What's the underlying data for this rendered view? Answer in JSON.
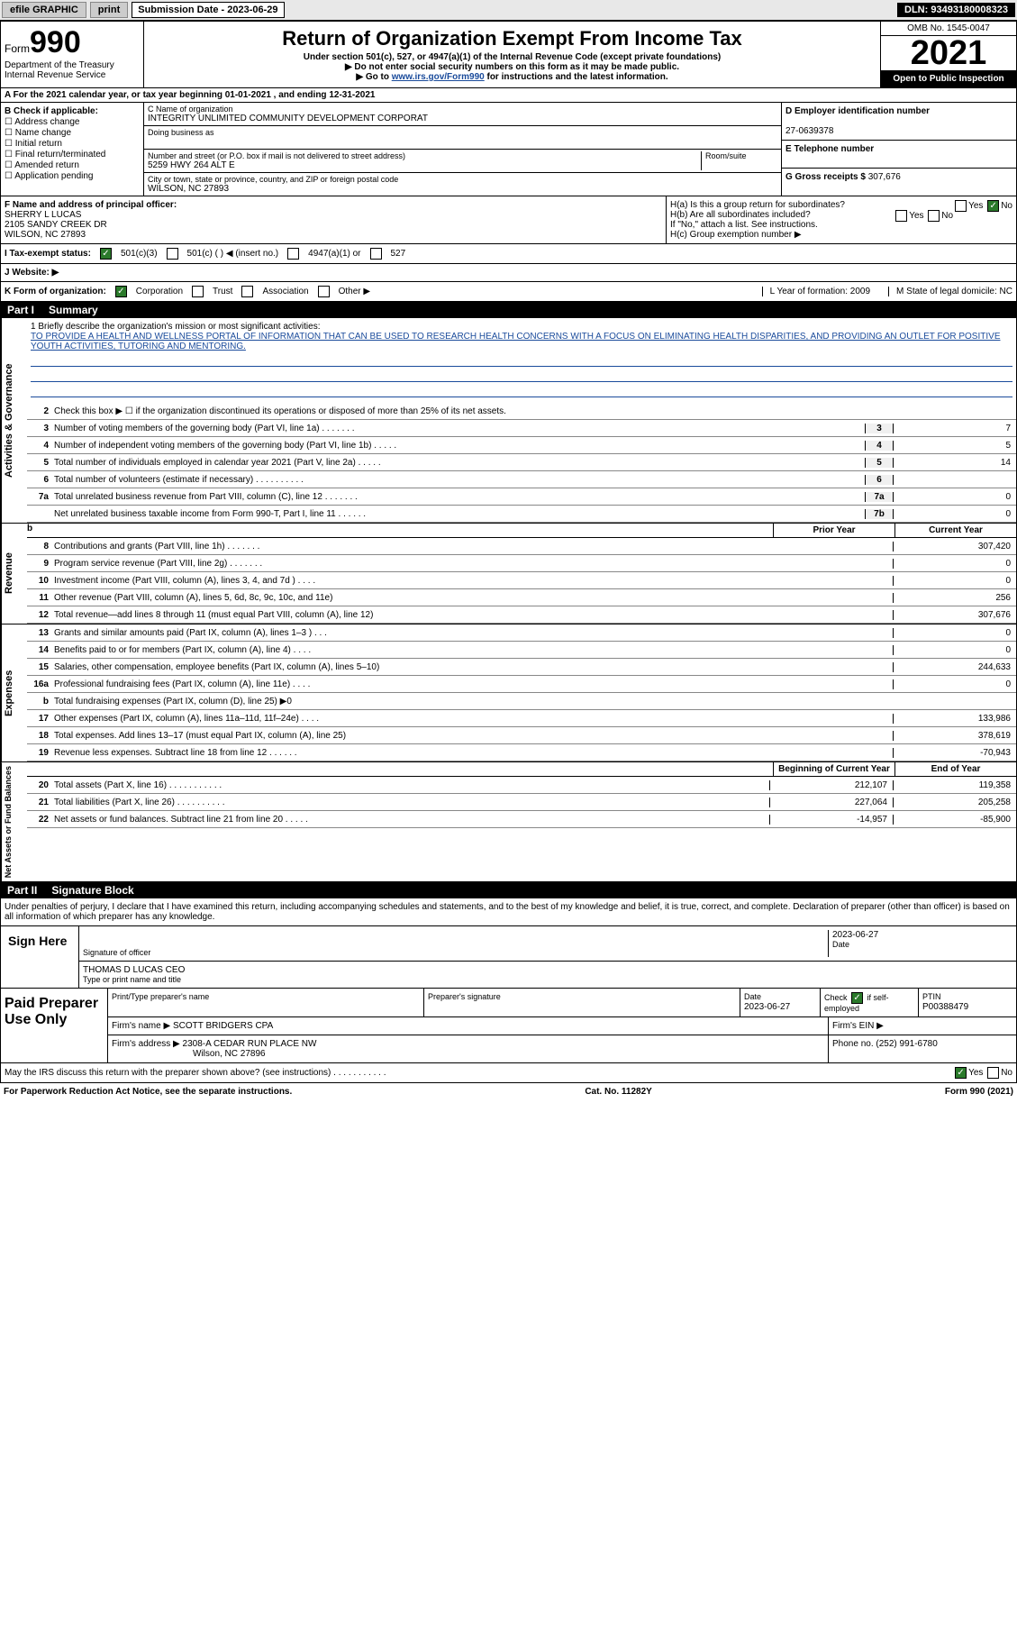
{
  "topbar": {
    "efile": "efile GRAPHIC",
    "print": "print",
    "sub_label": "Submission Date - 2023-06-29",
    "dln": "DLN: 93493180008323"
  },
  "header": {
    "form_word": "Form",
    "form_num": "990",
    "dept": "Department of the Treasury",
    "irs": "Internal Revenue Service",
    "title": "Return of Organization Exempt From Income Tax",
    "sub1": "Under section 501(c), 527, or 4947(a)(1) of the Internal Revenue Code (except private foundations)",
    "sub2": "▶ Do not enter social security numbers on this form as it may be made public.",
    "sub3_pre": "▶ Go to ",
    "sub3_link": "www.irs.gov/Form990",
    "sub3_post": " for instructions and the latest information.",
    "omb": "OMB No. 1545-0047",
    "year": "2021",
    "open": "Open to Public Inspection"
  },
  "section_a": "A For the 2021 calendar year, or tax year beginning 01-01-2021    , and ending 12-31-2021",
  "box_b": {
    "title": "B Check if applicable:",
    "items": [
      "Address change",
      "Name change",
      "Initial return",
      "Final return/terminated",
      "Amended return",
      "Application pending"
    ]
  },
  "box_c": {
    "name_label": "C Name of organization",
    "name": "INTEGRITY UNLIMITED COMMUNITY DEVELOPMENT CORPORAT",
    "dba_label": "Doing business as",
    "addr_label": "Number and street (or P.O. box if mail is not delivered to street address)",
    "room_label": "Room/suite",
    "addr": "5259 HWY 264 ALT E",
    "city_label": "City or town, state or province, country, and ZIP or foreign postal code",
    "city": "WILSON, NC  27893"
  },
  "box_d": {
    "label": "D Employer identification number",
    "ein": "27-0639378"
  },
  "box_e": {
    "label": "E Telephone number"
  },
  "box_g": {
    "label": "G Gross receipts $",
    "val": "307,676"
  },
  "box_f": {
    "label": "F  Name and address of principal officer:",
    "name": "SHERRY L LUCAS",
    "addr1": "2105 SANDY CREEK DR",
    "addr2": "WILSON, NC  27893"
  },
  "box_h": {
    "ha": "H(a)  Is this a group return for subordinates?",
    "hb": "H(b)  Are all subordinates included?",
    "hb_note": "If \"No,\" attach a list. See instructions.",
    "hc": "H(c)  Group exemption number ▶",
    "yes": "Yes",
    "no": "No"
  },
  "tax_status": {
    "label": "I  Tax-exempt status:",
    "opt1": "501(c)(3)",
    "opt2": "501(c) (   ) ◀ (insert no.)",
    "opt3": "4947(a)(1) or",
    "opt4": "527"
  },
  "website": {
    "label": "J  Website: ▶"
  },
  "korg": {
    "label": "K Form of organization:",
    "corp": "Corporation",
    "trust": "Trust",
    "assoc": "Association",
    "other": "Other ▶",
    "l": "L Year of formation: 2009",
    "m": "M State of legal domicile: NC"
  },
  "part1": {
    "num": "Part I",
    "title": "Summary"
  },
  "mission": {
    "label": "1  Briefly describe the organization's mission or most significant activities:",
    "text": "TO PROVIDE A HEALTH AND WELLNESS PORTAL OF INFORMATION THAT CAN BE USED TO RESEARCH HEALTH CONCERNS WITH A FOCUS ON ELIMINATING HEALTH DISPARITIES, AND PROVIDING AN OUTLET FOR POSITIVE YOUTH ACTIVITIES, TUTORING AND MENTORING."
  },
  "line2": "Check this box ▶ ☐  if the organization discontinued its operations or disposed of more than 25% of its net assets.",
  "lines_ag": [
    {
      "n": "3",
      "d": "Number of voting members of the governing body (Part VI, line 1a)   .    .    .    .    .    .    .",
      "box": "3",
      "v": "7"
    },
    {
      "n": "4",
      "d": "Number of independent voting members of the governing body (Part VI, line 1b)   .    .    .    .    .",
      "box": "4",
      "v": "5"
    },
    {
      "n": "5",
      "d": "Total number of individuals employed in calendar year 2021 (Part V, line 2a)   .    .    .    .    .",
      "box": "5",
      "v": "14"
    },
    {
      "n": "6",
      "d": "Total number of volunteers (estimate if necessary)    .    .    .    .    .    .    .    .    .    .",
      "box": "6",
      "v": ""
    },
    {
      "n": "7a",
      "d": "Total unrelated business revenue from Part VIII, column (C), line 12    .    .    .    .    .    .    .",
      "box": "7a",
      "v": "0"
    },
    {
      "n": "",
      "d": "Net unrelated business taxable income from Form 990-T, Part I, line 11    .    .    .    .    .    .",
      "box": "7b",
      "v": "0"
    }
  ],
  "col_headers": {
    "prior": "Prior Year",
    "current": "Current Year"
  },
  "revenue_lines": [
    {
      "n": "8",
      "d": "Contributions and grants (Part VIII, line 1h)    .    .    .    .    .    .    .",
      "p": "",
      "c": "307,420"
    },
    {
      "n": "9",
      "d": "Program service revenue (Part VIII, line 2g)    .    .    .    .    .    .    .",
      "p": "",
      "c": "0"
    },
    {
      "n": "10",
      "d": "Investment income (Part VIII, column (A), lines 3, 4, and 7d )    .    .    .    .",
      "p": "",
      "c": "0"
    },
    {
      "n": "11",
      "d": "Other revenue (Part VIII, column (A), lines 5, 6d, 8c, 9c, 10c, and 11e)",
      "p": "",
      "c": "256"
    },
    {
      "n": "12",
      "d": "Total revenue—add lines 8 through 11 (must equal Part VIII, column (A), line 12)",
      "p": "",
      "c": "307,676"
    }
  ],
  "expense_lines": [
    {
      "n": "13",
      "d": "Grants and similar amounts paid (Part IX, column (A), lines 1–3 )    .    .    .",
      "p": "",
      "c": "0"
    },
    {
      "n": "14",
      "d": "Benefits paid to or for members (Part IX, column (A), line 4)    .    .    .    .",
      "p": "",
      "c": "0"
    },
    {
      "n": "15",
      "d": "Salaries, other compensation, employee benefits (Part IX, column (A), lines 5–10)",
      "p": "",
      "c": "244,633"
    },
    {
      "n": "16a",
      "d": "Professional fundraising fees (Part IX, column (A), line 11e)    .    .    .    .",
      "p": "",
      "c": "0"
    },
    {
      "n": "b",
      "d": "Total fundraising expenses (Part IX, column (D), line 25) ▶0",
      "p": "grey",
      "c": "grey"
    },
    {
      "n": "17",
      "d": "Other expenses (Part IX, column (A), lines 11a–11d, 11f–24e)    .    .    .    .",
      "p": "",
      "c": "133,986"
    },
    {
      "n": "18",
      "d": "Total expenses. Add lines 13–17 (must equal Part IX, column (A), line 25)",
      "p": "",
      "c": "378,619"
    },
    {
      "n": "19",
      "d": "Revenue less expenses. Subtract line 18 from line 12    .    .    .    .    .    .",
      "p": "",
      "c": "-70,943"
    }
  ],
  "net_headers": {
    "begin": "Beginning of Current Year",
    "end": "End of Year"
  },
  "net_lines": [
    {
      "n": "20",
      "d": "Total assets (Part X, line 16)    .    .    .    .    .    .    .    .    .    .    .",
      "p": "212,107",
      "c": "119,358"
    },
    {
      "n": "21",
      "d": "Total liabilities (Part X, line 26)    .    .    .    .    .    .    .    .    .    .",
      "p": "227,064",
      "c": "205,258"
    },
    {
      "n": "22",
      "d": "Net assets or fund balances. Subtract line 21 from line 20    .    .    .    .    .",
      "p": "-14,957",
      "c": "-85,900"
    }
  ],
  "vert_labels": {
    "ag": "Activities & Governance",
    "rev": "Revenue",
    "exp": "Expenses",
    "net": "Net Assets or Fund Balances"
  },
  "part2": {
    "num": "Part II",
    "title": "Signature Block"
  },
  "sig_decl": "Under penalties of perjury, I declare that I have examined this return, including accompanying schedules and statements, and to the best of my knowledge and belief, it is true, correct, and complete. Declaration of preparer (other than officer) is based on all information of which preparer has any knowledge.",
  "sign": {
    "here": "Sign Here",
    "sig_label": "Signature of officer",
    "date": "2023-06-27",
    "date_label": "Date",
    "name": "THOMAS D LUCAS CEO",
    "name_label": "Type or print name and title"
  },
  "paid": {
    "title": "Paid Preparer Use Only",
    "prep_name_label": "Print/Type preparer's name",
    "prep_sig_label": "Preparer's signature",
    "date_label": "Date",
    "date": "2023-06-27",
    "check_label": "Check ☑ if self-employed",
    "ptin_label": "PTIN",
    "ptin": "P00388479",
    "firm_name_label": "Firm's name   ▶",
    "firm_name": "SCOTT BRIDGERS CPA",
    "firm_ein_label": "Firm's EIN ▶",
    "firm_addr_label": "Firm's address ▶",
    "firm_addr": "2308-A CEDAR RUN PLACE NW",
    "firm_city": "Wilson, NC  27896",
    "phone_label": "Phone no.",
    "phone": "(252) 991-6780"
  },
  "discuss": "May the IRS discuss this return with the preparer shown above? (see instructions)    .    .    .    .    .    .    .    .    .    .    .",
  "footer": {
    "left": "For Paperwork Reduction Act Notice, see the separate instructions.",
    "mid": "Cat. No. 11282Y",
    "right": "Form 990 (2021)"
  }
}
